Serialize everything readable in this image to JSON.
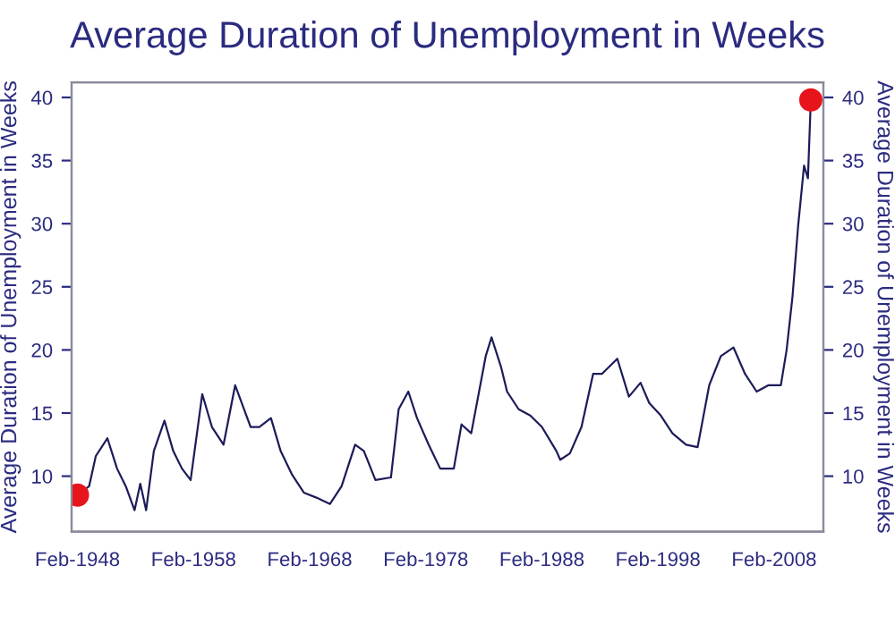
{
  "chart_data": {
    "type": "line",
    "title": "Average Duration of Unemployment in Weeks",
    "ylabel": "Average Duration of Unemployment in Weeks",
    "y2label": "Average Duration of Unemployment in Weeks",
    "xlim": [
      "1947-08",
      "2012-05"
    ],
    "xticks": [
      {
        "value": "1948-02",
        "label": "Feb-1948"
      },
      {
        "value": "1958-02",
        "label": "Feb-1958"
      },
      {
        "value": "1968-02",
        "label": "Feb-1968"
      },
      {
        "value": "1978-02",
        "label": "Feb-1978"
      },
      {
        "value": "1988-02",
        "label": "Feb-1988"
      },
      {
        "value": "1998-02",
        "label": "Feb-1998"
      },
      {
        "value": "2008-02",
        "label": "Feb-2008"
      }
    ],
    "ylim": [
      5.6,
      41.2
    ],
    "yticks": [
      10,
      15,
      20,
      25,
      30,
      35,
      40
    ],
    "y2lim": [
      5.6,
      41.2
    ],
    "y2ticks": [
      10,
      15,
      20,
      25,
      30,
      35,
      40
    ],
    "grid": false,
    "legend": false,
    "series": [
      {
        "color": "#1c1c5a",
        "x": [
          "1948-02",
          "1949-02",
          "1949-09",
          "1950-09",
          "1951-07",
          "1952-04",
          "1953-01",
          "1953-07",
          "1954-01",
          "1954-09",
          "1955-08",
          "1956-05",
          "1957-02",
          "1957-11",
          "1958-11",
          "1959-09",
          "1960-09",
          "1961-09",
          "1963-01",
          "1963-10",
          "1964-10",
          "1965-08",
          "1966-08",
          "1967-08",
          "1968-09",
          "1969-11",
          "1970-11",
          "1972-01",
          "1972-10",
          "1973-10",
          "1975-02",
          "1975-10",
          "1976-08",
          "1977-05",
          "1978-05",
          "1979-05",
          "1980-07",
          "1981-03",
          "1982-01",
          "1983-04",
          "1983-10",
          "1984-08",
          "1985-02",
          "1986-02",
          "1987-02",
          "1988-02",
          "1989-05",
          "1989-09",
          "1990-07",
          "1991-07",
          "1992-07",
          "1993-04",
          "1994-08",
          "1995-08",
          "1996-08",
          "1997-05",
          "1998-05",
          "1999-05",
          "2000-07",
          "2001-07",
          "2002-07",
          "2003-07",
          "2004-08",
          "2005-08",
          "2006-08",
          "2007-08",
          "2008-09",
          "2009-03",
          "2009-09",
          "2010-03",
          "2010-09",
          "2011-01",
          "2011-04"
        ],
        "values": [
          8.5,
          9.2,
          11.6,
          13.0,
          10.6,
          9.2,
          7.3,
          9.4,
          7.3,
          12.0,
          14.4,
          12.0,
          10.6,
          9.7,
          16.5,
          13.9,
          12.5,
          17.2,
          13.9,
          13.9,
          14.6,
          12.0,
          10.1,
          8.7,
          8.3,
          7.8,
          9.2,
          12.5,
          12.0,
          9.7,
          9.9,
          15.3,
          16.7,
          14.6,
          12.5,
          10.6,
          10.6,
          14.1,
          13.4,
          19.5,
          21.0,
          18.6,
          16.7,
          15.3,
          14.8,
          13.9,
          12.0,
          11.3,
          11.8,
          13.9,
          18.1,
          18.1,
          19.3,
          16.3,
          17.4,
          15.8,
          14.8,
          13.4,
          12.5,
          12.3,
          17.2,
          19.5,
          20.2,
          18.1,
          16.7,
          17.2,
          17.2,
          20.0,
          24.2,
          29.9,
          34.6,
          33.6,
          39.8
        ]
      },
      {
        "type": "scatter",
        "color": "#e8141c",
        "marker": "circle",
        "x": [
          "1948-02",
          "2011-04"
        ],
        "values": [
          8.5,
          39.8
        ]
      }
    ]
  }
}
